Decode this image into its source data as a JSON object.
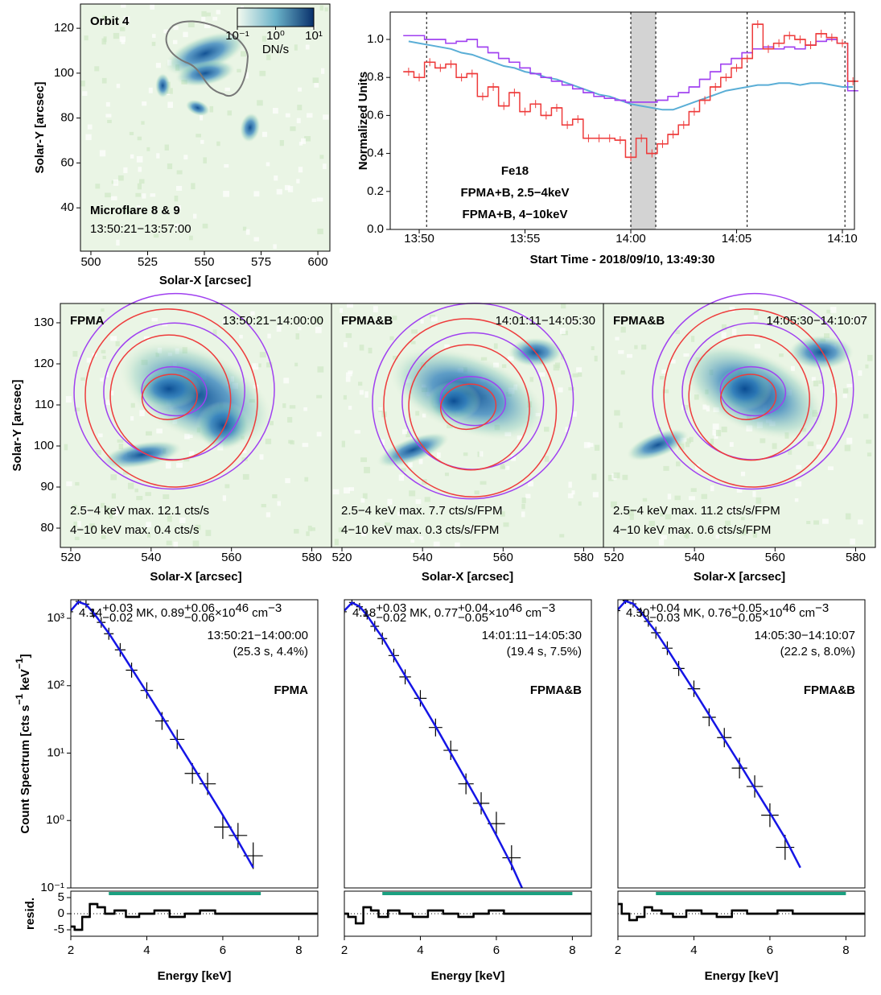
{
  "chart_data": [
    {
      "type": "image",
      "title": "Orbit 4",
      "annotations": [
        {
          "text": "Microflare 8 & 9"
        },
        {
          "text": "13:50:21−13:57:00"
        }
      ],
      "xlabel": "Solar-X [arcsec]",
      "ylabel": "Solar-Y [arcsec]",
      "xlim": [
        495.4,
        605.3
      ],
      "xticks": [
        500,
        525,
        550,
        575,
        600
      ],
      "ylim": [
        20.7,
        130.8
      ],
      "yticks": [
        40,
        60,
        80,
        100,
        120
      ],
      "colorbar": {
        "label": "DN/s",
        "log": true,
        "lim": [
          0.1,
          10
        ],
        "ticks": [
          {
            "value": 0.1,
            "label": "10⁻¹"
          },
          {
            "value": 1,
            "label": "10⁰"
          },
          {
            "value": 10,
            "label": "10¹"
          }
        ]
      }
    },
    {
      "type": "line",
      "xlabel": "Start Time - 2018/09/10, 13:49:30",
      "ylabel": "Normalized Units",
      "xlim": [
        -0.87,
        21.07
      ],
      "xticks": [
        {
          "value": 0.5,
          "label": "13:50"
        },
        {
          "value": 5.5,
          "label": "13:55"
        },
        {
          "value": 10.5,
          "label": "14:00"
        },
        {
          "value": 15.5,
          "label": "14:05"
        },
        {
          "value": 20.5,
          "label": "14:10"
        }
      ],
      "ylim": [
        0,
        1.144
      ],
      "yticks": [
        {
          "value": 0,
          "label": "0.0"
        },
        0.2,
        0.4,
        0.6,
        0.8,
        {
          "value": 1,
          "label": "1.0"
        }
      ],
      "vlines": [
        0.85,
        10.5,
        11.68,
        16,
        20.62
      ],
      "shaded": [
        10.5,
        11.68
      ],
      "x": [
        0,
        0.5,
        1,
        1.5,
        2,
        2.5,
        3,
        3.5,
        4,
        4.5,
        5,
        5.5,
        6,
        6.5,
        7,
        7.5,
        8,
        8.5,
        9,
        9.5,
        10,
        10.5,
        11,
        11.5,
        12,
        12.5,
        13,
        13.5,
        14,
        14.5,
        15,
        15.5,
        16,
        16.5,
        17,
        17.5,
        18,
        18.5,
        19,
        19.5,
        20,
        20.5,
        21
      ],
      "series": [
        {
          "name": "Fe18",
          "color": "#5aaed6",
          "step": false,
          "values": [
            0.99,
            0.98,
            0.97,
            0.96,
            0.95,
            0.93,
            0.92,
            0.9,
            0.88,
            0.86,
            0.85,
            0.83,
            0.82,
            0.8,
            0.79,
            0.77,
            0.75,
            0.73,
            0.71,
            0.7,
            0.68,
            0.66,
            0.65,
            0.64,
            0.63,
            0.63,
            0.65,
            0.67,
            0.69,
            0.71,
            0.73,
            0.74,
            0.75,
            0.76,
            0.76,
            0.77,
            0.77,
            0.76,
            0.77,
            0.77,
            0.76,
            0.75,
            0.75
          ]
        },
        {
          "name": "FPMA+B, 2.5−4keV",
          "color": "#a040f0",
          "step": true,
          "values": [
            1.02,
            1.02,
            1.0,
            1.0,
            0.98,
            0.99,
            1.0,
            0.96,
            0.93,
            0.9,
            0.88,
            0.85,
            0.82,
            0.8,
            0.78,
            0.76,
            0.74,
            0.72,
            0.7,
            0.69,
            0.68,
            0.67,
            0.67,
            0.67,
            0.68,
            0.7,
            0.72,
            0.75,
            0.79,
            0.83,
            0.87,
            0.9,
            0.93,
            0.95,
            0.96,
            0.95,
            0.96,
            0.95,
            0.97,
            0.99,
            1.0,
            0.98,
            0.73
          ]
        },
        {
          "name": "FPMA+B, 4−10keV",
          "color": "#ee3b3b",
          "step": true,
          "values": [
            0.83,
            0.8,
            0.88,
            0.85,
            0.87,
            0.8,
            0.82,
            0.7,
            0.75,
            0.65,
            0.72,
            0.62,
            0.66,
            0.6,
            0.64,
            0.55,
            0.58,
            0.48,
            0.48,
            0.48,
            0.47,
            0.38,
            0.48,
            0.4,
            0.45,
            0.5,
            0.55,
            0.62,
            0.68,
            0.75,
            0.8,
            0.85,
            0.9,
            1.08,
            0.95,
            0.98,
            1.02,
            1.0,
            0.97,
            1.03,
            1.01,
            0.98,
            0.78
          ]
        }
      ]
    },
    {
      "type": "image",
      "title": "FPMA",
      "time_range": "13:50:21−14:00:00",
      "xlabel": "Solar-X [arcsec]",
      "ylabel": "Solar-Y [arcsec]",
      "xlim": [
        517.4,
        584.9
      ],
      "xticks": [
        520,
        540,
        560,
        580
      ],
      "ylim": [
        75.3,
        134.7
      ],
      "yticks": [
        80,
        90,
        100,
        110,
        120,
        130
      ],
      "annotations": [
        {
          "text": "2.5−4 keV max. 12.1 cts/s",
          "color": "#a040f0"
        },
        {
          "text": "4−10 keV max. 0.4 cts/s",
          "color": "#ee3b3b"
        }
      ]
    },
    {
      "type": "image",
      "title": "FPMA&B",
      "time_range": "14:01:11−14:05:30",
      "xlabel": "Solar-X [arcsec]",
      "xlim": [
        517.4,
        584.9
      ],
      "xticks": [
        520,
        540,
        560,
        580
      ],
      "ylim": [
        75.3,
        134.7
      ],
      "annotations": [
        {
          "text": "2.5−4 keV max. 7.7 cts/s/FPM",
          "color": "#a040f0"
        },
        {
          "text": "4−10 keV max. 0.3 cts/s/FPM",
          "color": "#ee3b3b"
        }
      ]
    },
    {
      "type": "image",
      "title": "FPMA&B",
      "time_range": "14:05:30−14:10:07",
      "xlabel": "Solar-X [arcsec]",
      "xlim": [
        517.4,
        584.9
      ],
      "xticks": [
        520,
        540,
        560,
        580
      ],
      "ylim": [
        75.3,
        134.7
      ],
      "annotations": [
        {
          "text": "2.5−4 keV max. 11.2 cts/s/FPM",
          "color": "#a040f0"
        },
        {
          "text": "4−10 keV max. 0.6 cts/s/FPM",
          "color": "#ee3b3b"
        }
      ]
    },
    {
      "type": "spectrum",
      "log_y": true,
      "detector": "FPMA",
      "time_range": "13:50:21−14:00:00",
      "stats": "(25.3 s, 4.4%)",
      "fit": {
        "color": "#1515e6",
        "T": "4.14",
        "T_err": [
          "+0.03",
          "−0.02"
        ],
        "T_unit": "MK,",
        "EM": "0.89",
        "EM_err": [
          "+0.06",
          "−0.06"
        ],
        "EM_unit": "×10",
        "EM_exp": "46",
        "vol_unit": "cm",
        "vol_exp": "−3"
      },
      "ylabel": [
        "Count Spectrum [cts s",
        "−1",
        " keV",
        "−1",
        "]"
      ],
      "xlabel": "Energy [keV]",
      "xlim": [
        2,
        8.5
      ],
      "xticks": [
        2,
        4,
        6,
        8
      ],
      "ylim": [
        0.1,
        1884
      ],
      "yticks": [
        {
          "value": 0.1,
          "label": "10⁻¹"
        },
        {
          "value": 1,
          "label": "10⁰"
        },
        {
          "value": 10,
          "label": "10¹"
        },
        {
          "value": 100,
          "label": "10²"
        },
        {
          "value": 1000,
          "label": "10³"
        }
      ],
      "x": [
        2.0,
        2.2,
        2.4,
        2.6,
        2.8,
        3.0,
        3.3,
        3.6,
        4.0,
        4.4,
        4.8,
        5.2,
        5.6,
        6.0,
        6.4,
        6.8
      ],
      "model": {
        "color": "#1515e6",
        "values": [
          1300,
          1750,
          1600,
          1200,
          850,
          600,
          330,
          180,
          80,
          35,
          15,
          6.5,
          2.8,
          1.2,
          0.5,
          0.2
        ]
      },
      "data": {
        "color": "#000000",
        "values": [
          1250,
          1780,
          1620,
          1180,
          870,
          590,
          340,
          170,
          85,
          30,
          16,
          5,
          3.5,
          0.8,
          0.6,
          0.3
        ]
      },
      "residual": {
        "ylabel": "resid.",
        "ylim": [
          -7,
          7
        ],
        "yticks": [
          -5,
          0,
          5
        ],
        "fit_range": [
          3,
          7
        ],
        "fit_color": "#1aa080",
        "values": [
          -4,
          -5,
          -1,
          3,
          2,
          0,
          1,
          -1,
          0,
          1,
          -1,
          0,
          1,
          0,
          0,
          0
        ]
      }
    },
    {
      "type": "spectrum",
      "log_y": true,
      "detector": "FPMA&B",
      "time_range": "14:01:11−14:05:30",
      "stats": "(19.4 s, 7.5%)",
      "fit": {
        "color": "#1515e6",
        "T": "4.18",
        "T_err": [
          "+0.03",
          "−0.02"
        ],
        "T_unit": "MK,",
        "EM": "0.77",
        "EM_err": [
          "+0.04",
          "−0.05"
        ],
        "EM_unit": "×10",
        "EM_exp": "46",
        "vol_unit": "cm",
        "vol_exp": "−3"
      },
      "xlabel": "Energy [keV]",
      "xlim": [
        2,
        8.5
      ],
      "xticks": [
        2,
        4,
        6,
        8
      ],
      "ylim": [
        0.1,
        1884
      ],
      "x": [
        2.0,
        2.2,
        2.4,
        2.6,
        2.8,
        3.0,
        3.3,
        3.6,
        4.0,
        4.4,
        4.8,
        5.2,
        5.6,
        6.0,
        6.4,
        6.8
      ],
      "model": {
        "color": "#1515e6",
        "values": [
          1300,
          1700,
          1500,
          1100,
          750,
          520,
          270,
          140,
          60,
          25,
          10,
          4,
          1.6,
          0.6,
          0.22,
          0.07
        ]
      },
      "data": {
        "color": "#000000",
        "values": [
          1250,
          1720,
          1480,
          1120,
          760,
          500,
          280,
          135,
          65,
          24,
          11,
          3.5,
          1.8,
          0.9,
          0.28,
          null
        ]
      },
      "residual": {
        "ylim": [
          -7,
          7
        ],
        "fit_range": [
          3,
          8
        ],
        "fit_color": "#1aa080",
        "values": [
          0,
          -1,
          -3,
          2,
          1,
          -1,
          1,
          0,
          -1,
          1,
          0,
          -1,
          0,
          1,
          0,
          0
        ]
      }
    },
    {
      "type": "spectrum",
      "log_y": true,
      "detector": "FPMA&B",
      "time_range": "14:05:30−14:10:07",
      "stats": "(22.2 s, 8.0%)",
      "fit": {
        "color": "#1515e6",
        "T": "4.30",
        "T_err": [
          "+0.04",
          "−0.03"
        ],
        "T_unit": "MK,",
        "EM": "0.76",
        "EM_err": [
          "+0.05",
          "−0.05"
        ],
        "EM_unit": "×10",
        "EM_exp": "46",
        "vol_unit": "cm",
        "vol_exp": "−3"
      },
      "xlabel": "Energy [keV]",
      "xlim": [
        2,
        8.5
      ],
      "xticks": [
        2,
        4,
        6,
        8
      ],
      "ylim": [
        0.1,
        1884
      ],
      "x": [
        2.0,
        2.2,
        2.4,
        2.6,
        2.8,
        3.0,
        3.3,
        3.6,
        4.0,
        4.4,
        4.8,
        5.2,
        5.6,
        6.0,
        6.4,
        6.8
      ],
      "model": {
        "color": "#1515e6",
        "values": [
          1350,
          1800,
          1650,
          1250,
          880,
          630,
          350,
          190,
          85,
          37,
          16,
          7,
          3,
          1.3,
          0.55,
          0.2
        ]
      },
      "data": {
        "color": "#000000",
        "values": [
          1300,
          1820,
          1640,
          1230,
          900,
          610,
          360,
          180,
          90,
          34,
          17,
          6,
          3.2,
          1.2,
          0.4,
          null
        ]
      },
      "residual": {
        "ylim": [
          -7,
          7
        ],
        "fit_range": [
          3,
          8
        ],
        "fit_color": "#1aa080",
        "values": [
          3,
          0,
          -2,
          -1,
          2,
          1,
          0,
          -1,
          1,
          0,
          -1,
          1,
          0,
          0,
          1,
          0
        ]
      }
    }
  ]
}
